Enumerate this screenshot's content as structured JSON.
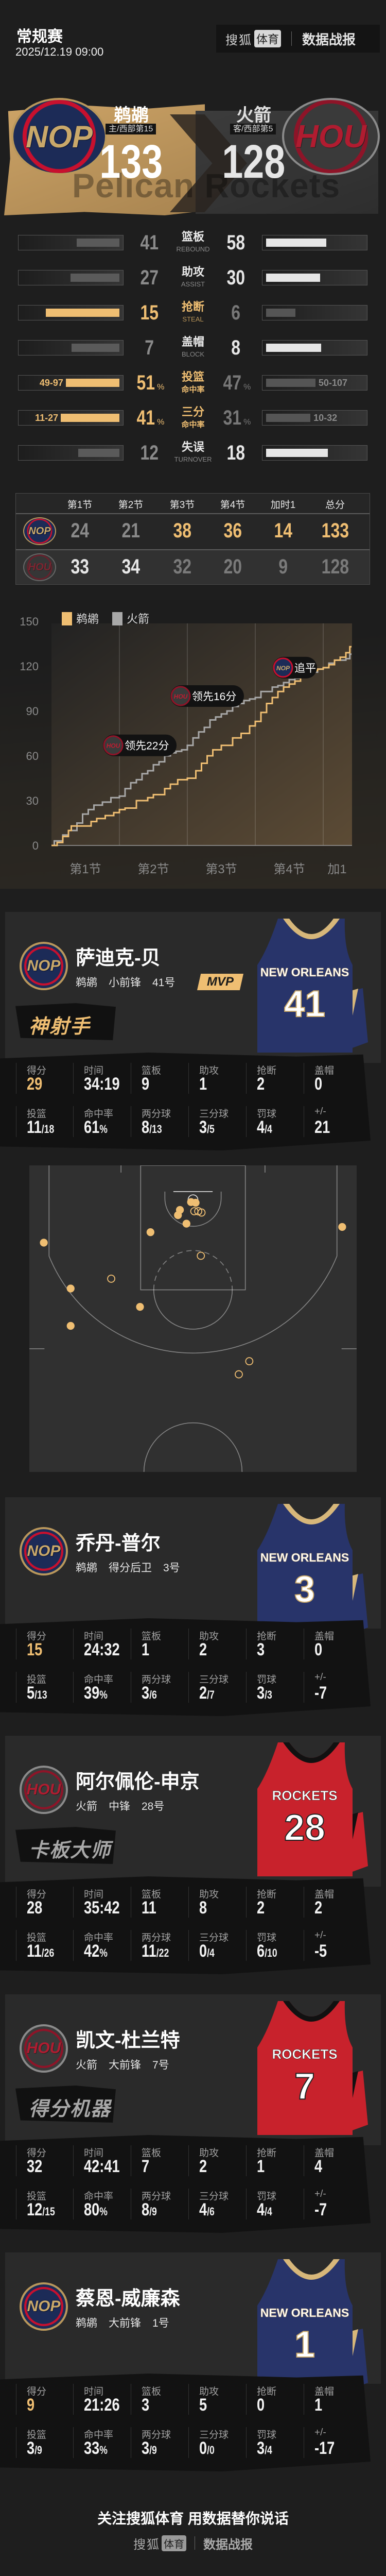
{
  "header": {
    "match_type": "常规赛",
    "datetime": "2025/12.19 09:00",
    "brand": {
      "name": "搜狐",
      "badge": "体育",
      "report": "数据战报"
    }
  },
  "teams": {
    "home": {
      "abbr": "NOP",
      "name": "鹈鹕",
      "sub": "主/西部第15",
      "score": "133",
      "color": "#efbe72"
    },
    "away": {
      "abbr": "HOU",
      "name": "火箭",
      "sub": "客/西部第5",
      "score": "128",
      "color": "#b01c30"
    }
  },
  "watermark": "Pelican Rockets",
  "team_stats": [
    {
      "label": "篮板",
      "sub": "REBOUND",
      "home": "41",
      "away": "58",
      "winner": "away"
    },
    {
      "label": "助攻",
      "sub": "ASSIST",
      "home": "27",
      "away": "30",
      "winner": "away"
    },
    {
      "label": "抢断",
      "sub": "STEAL",
      "home": "15",
      "away": "6",
      "winner": "home"
    },
    {
      "label": "盖帽",
      "sub": "BLOCK",
      "home": "7",
      "away": "8",
      "winner": "away"
    },
    {
      "label": "投篮",
      "sub": "命中率",
      "home": "51",
      "away": "47",
      "unit": "%",
      "home_detail": "49-97",
      "away_detail": "50-107",
      "winner": "home"
    },
    {
      "label": "三分",
      "sub": "命中率",
      "home": "41",
      "away": "31",
      "unit": "%",
      "home_detail": "11-27",
      "away_detail": "10-32",
      "winner": "home"
    },
    {
      "label": "失误",
      "sub": "TURNOVER",
      "home": "12",
      "away": "18",
      "winner": "away"
    }
  ],
  "quarters": {
    "headers": [
      "第1节",
      "第2节",
      "第3节",
      "第4节",
      "加时1",
      "总分"
    ],
    "home": [
      "24",
      "21",
      "38",
      "36",
      "14",
      "133"
    ],
    "away": [
      "33",
      "34",
      "32",
      "20",
      "9",
      "128"
    ],
    "winners": [
      "away",
      "away",
      "home",
      "home",
      "home",
      "home"
    ]
  },
  "chart_data": {
    "type": "line",
    "step": true,
    "legend": {
      "placement": "top-left"
    },
    "x_tick_labels": [
      "第1节",
      "第2节",
      "第3节",
      "第4节",
      "加1"
    ],
    "x_unit": "minute",
    "xlim": [
      0,
      53
    ],
    "ylim": [
      0,
      150
    ],
    "y_ticks": [
      "0",
      "30",
      "60",
      "90",
      "120",
      "150"
    ],
    "grid": "vertical at quarter ends",
    "series": [
      {
        "name": "鹈鹕",
        "color": "#efbe72",
        "points": [
          [
            0,
            0
          ],
          [
            1,
            2
          ],
          [
            2,
            6
          ],
          [
            3,
            10
          ],
          [
            3.5,
            13
          ],
          [
            6.5,
            13
          ],
          [
            7,
            16
          ],
          [
            8,
            18
          ],
          [
            9.5,
            20
          ],
          [
            11,
            22
          ],
          [
            12,
            24
          ],
          [
            13,
            25
          ],
          [
            15,
            30
          ],
          [
            17,
            32
          ],
          [
            18,
            34
          ],
          [
            20,
            38
          ],
          [
            21,
            41
          ],
          [
            22.3,
            44
          ],
          [
            24,
            45
          ],
          [
            25.5,
            50
          ],
          [
            26.5,
            55
          ],
          [
            27.5,
            60
          ],
          [
            28.5,
            64
          ],
          [
            30,
            67
          ],
          [
            32,
            72
          ],
          [
            33.5,
            75
          ],
          [
            35,
            80
          ],
          [
            36,
            83
          ],
          [
            37,
            89
          ],
          [
            38,
            95
          ],
          [
            39,
            99
          ],
          [
            40,
            103
          ],
          [
            41,
            106
          ],
          [
            42,
            108
          ],
          [
            43,
            110
          ],
          [
            44,
            114
          ],
          [
            45,
            116
          ],
          [
            46,
            117
          ],
          [
            47,
            118
          ],
          [
            48,
            119
          ],
          [
            49,
            121
          ],
          [
            50,
            124
          ],
          [
            51,
            126
          ],
          [
            52,
            129
          ],
          [
            52.7,
            133
          ],
          [
            53,
            133
          ]
        ]
      },
      {
        "name": "火箭",
        "color": "#a8a8a8",
        "points": [
          [
            0,
            0
          ],
          [
            0.5,
            3
          ],
          [
            2,
            7
          ],
          [
            3,
            10
          ],
          [
            4.5,
            15
          ],
          [
            5.5,
            21
          ],
          [
            6.5,
            24
          ],
          [
            7.5,
            27
          ],
          [
            9,
            29
          ],
          [
            10.5,
            32
          ],
          [
            12,
            33
          ],
          [
            13,
            38
          ],
          [
            14,
            42
          ],
          [
            15,
            44
          ],
          [
            16,
            48
          ],
          [
            17,
            50
          ],
          [
            18,
            54
          ],
          [
            19,
            56
          ],
          [
            20,
            60
          ],
          [
            21,
            62
          ],
          [
            22,
            63
          ],
          [
            23,
            64
          ],
          [
            24,
            67
          ],
          [
            25,
            72
          ],
          [
            26,
            76
          ],
          [
            27,
            79
          ],
          [
            28,
            84
          ],
          [
            29,
            86
          ],
          [
            30,
            88
          ],
          [
            31,
            90
          ],
          [
            32,
            93
          ],
          [
            33,
            95
          ],
          [
            34,
            97
          ],
          [
            35,
            98
          ],
          [
            36,
            99
          ],
          [
            37,
            103
          ],
          [
            39,
            106
          ],
          [
            40,
            107
          ],
          [
            41,
            109
          ],
          [
            42,
            111
          ],
          [
            43,
            112
          ],
          [
            44,
            113
          ],
          [
            45,
            114
          ],
          [
            46,
            116
          ],
          [
            47,
            118
          ],
          [
            48,
            119
          ],
          [
            49,
            122
          ],
          [
            50,
            124
          ],
          [
            51,
            124
          ],
          [
            52,
            125
          ],
          [
            52.7,
            128
          ],
          [
            53,
            128
          ]
        ]
      }
    ],
    "annotations": [
      {
        "team": "HOU",
        "text": "领先22分",
        "at": [
          15.6,
          67
        ]
      },
      {
        "team": "HOU",
        "text": "领先16分",
        "at": [
          27.5,
          100
        ]
      },
      {
        "team": "NOP",
        "text": "追平",
        "at": [
          43,
          119
        ]
      }
    ]
  },
  "stat_labels": {
    "row1": [
      "得分",
      "时间",
      "篮板",
      "助攻",
      "抢断",
      "盖帽"
    ],
    "row2": [
      "投篮",
      "命中率",
      "两分球",
      "三分球",
      "罚球",
      "+/-"
    ]
  },
  "players": [
    {
      "team_abbr": "NOP",
      "name": "萨迪克-贝",
      "team": "鹈鹕",
      "position": "小前锋",
      "number": "41号",
      "badge": "MVP",
      "tag": "神射手",
      "tag_color": "#efbe72",
      "jersey": {
        "text": "NEW ORLEANS",
        "number": "41",
        "style": "nop"
      },
      "row1": [
        {
          "value": "29"
        },
        {
          "value": "34:19"
        },
        {
          "value": "9"
        },
        {
          "value": "1"
        },
        {
          "value": "2"
        },
        {
          "value": "0"
        }
      ],
      "row2": [
        {
          "value": "11",
          "suffix": "/18"
        },
        {
          "value": "61",
          "suffix": "%"
        },
        {
          "value": "8",
          "suffix": "/13"
        },
        {
          "value": "3",
          "suffix": "/5"
        },
        {
          "value": "4",
          "suffix": "/4"
        },
        {
          "value": "21"
        }
      ]
    },
    {
      "team_abbr": "NOP",
      "name": "乔丹-普尔",
      "team": "鹈鹕",
      "position": "得分后卫",
      "number": "3号",
      "jersey": {
        "text": "NEW ORLEANS",
        "number": "3",
        "style": "nop"
      },
      "row1": [
        {
          "value": "15"
        },
        {
          "value": "24:32"
        },
        {
          "value": "1"
        },
        {
          "value": "2"
        },
        {
          "value": "3"
        },
        {
          "value": "0"
        }
      ],
      "row2": [
        {
          "value": "5",
          "suffix": "/13"
        },
        {
          "value": "39",
          "suffix": "%"
        },
        {
          "value": "3",
          "suffix": "/6"
        },
        {
          "value": "2",
          "suffix": "/7"
        },
        {
          "value": "3",
          "suffix": "/3"
        },
        {
          "value": "-7"
        }
      ]
    },
    {
      "team_abbr": "HOU",
      "name": "阿尔佩伦-申京",
      "team": "火箭",
      "position": "中锋",
      "number": "28号",
      "tag": "卡板大师",
      "tag_color": "#a8a8a8",
      "jersey": {
        "text": "ROCKETS",
        "number": "28",
        "style": "hou"
      },
      "row1": [
        {
          "value": "28"
        },
        {
          "value": "35:42"
        },
        {
          "value": "11"
        },
        {
          "value": "8"
        },
        {
          "value": "2"
        },
        {
          "value": "2"
        }
      ],
      "row2": [
        {
          "value": "11",
          "suffix": "/26"
        },
        {
          "value": "42",
          "suffix": "%"
        },
        {
          "value": "11",
          "suffix": "/22"
        },
        {
          "value": "0",
          "suffix": "/4"
        },
        {
          "value": "6",
          "suffix": "/10"
        },
        {
          "value": "-5"
        }
      ]
    },
    {
      "team_abbr": "HOU",
      "name": "凯文-杜兰特",
      "team": "火箭",
      "position": "大前锋",
      "number": "7号",
      "tag": "得分机器",
      "tag_color": "#a8a8a8",
      "jersey": {
        "text": "ROCKETS",
        "number": "7",
        "style": "hou"
      },
      "row1": [
        {
          "value": "32"
        },
        {
          "value": "42:41"
        },
        {
          "value": "7"
        },
        {
          "value": "2"
        },
        {
          "value": "1"
        },
        {
          "value": "4"
        }
      ],
      "row2": [
        {
          "value": "12",
          "suffix": "/15"
        },
        {
          "value": "80",
          "suffix": "%"
        },
        {
          "value": "8",
          "suffix": "/9"
        },
        {
          "value": "4",
          "suffix": "/6"
        },
        {
          "value": "4",
          "suffix": "/4"
        },
        {
          "value": "-7"
        }
      ]
    },
    {
      "team_abbr": "NOP",
      "name": "蔡恩-威廉森",
      "team": "鹈鹕",
      "position": "大前锋",
      "number": "1号",
      "jersey": {
        "text": "NEW ORLEANS",
        "number": "1",
        "style": "nop"
      },
      "row1": [
        {
          "value": "9"
        },
        {
          "value": "21:26"
        },
        {
          "value": "3"
        },
        {
          "value": "5"
        },
        {
          "value": "0"
        },
        {
          "value": "1"
        }
      ],
      "row2": [
        {
          "value": "3",
          "suffix": "/9"
        },
        {
          "value": "33",
          "suffix": "%"
        },
        {
          "value": "3",
          "suffix": "/9"
        },
        {
          "value": "0",
          "suffix": "/0"
        },
        {
          "value": "3",
          "suffix": "/4"
        },
        {
          "value": "-17"
        }
      ]
    }
  ],
  "shot_chart": {
    "player": "萨迪克-贝",
    "units": "feet from center line (x) and baseline (y)",
    "made_color": "#efbe72",
    "shots": [
      {
        "x": -0.3,
        "y": 5.6,
        "made": true
      },
      {
        "x": 0.4,
        "y": 5.7,
        "made": true
      },
      {
        "x": -2.0,
        "y": 6.8,
        "made": true
      },
      {
        "x": -2.3,
        "y": 7.6,
        "made": true
      },
      {
        "x": -1.0,
        "y": 8.9,
        "made": true
      },
      {
        "x": -6.5,
        "y": 10.2,
        "made": true
      },
      {
        "x": -22.8,
        "y": 11.8,
        "made": true
      },
      {
        "x": 22.8,
        "y": 9.4,
        "made": true
      },
      {
        "x": -18.7,
        "y": 18.8,
        "made": true
      },
      {
        "x": -8.1,
        "y": 21.6,
        "made": true
      },
      {
        "x": -18.7,
        "y": 24.5,
        "made": true
      },
      {
        "x": 0.2,
        "y": 7.0,
        "made": false
      },
      {
        "x": 0.8,
        "y": 7.0,
        "made": false
      },
      {
        "x": 1.3,
        "y": 7.2,
        "made": false
      },
      {
        "x": 1.2,
        "y": 13.8,
        "made": false
      },
      {
        "x": -12.5,
        "y": 17.3,
        "made": false
      },
      {
        "x": 8.6,
        "y": 29.9,
        "made": false
      },
      {
        "x": 7.0,
        "y": 31.9,
        "made": false
      }
    ]
  },
  "footer": {
    "slogan": "关注搜狐体育 用数据替你说话",
    "brand": {
      "name": "搜狐",
      "badge": "体育",
      "report": "数据战报"
    }
  }
}
